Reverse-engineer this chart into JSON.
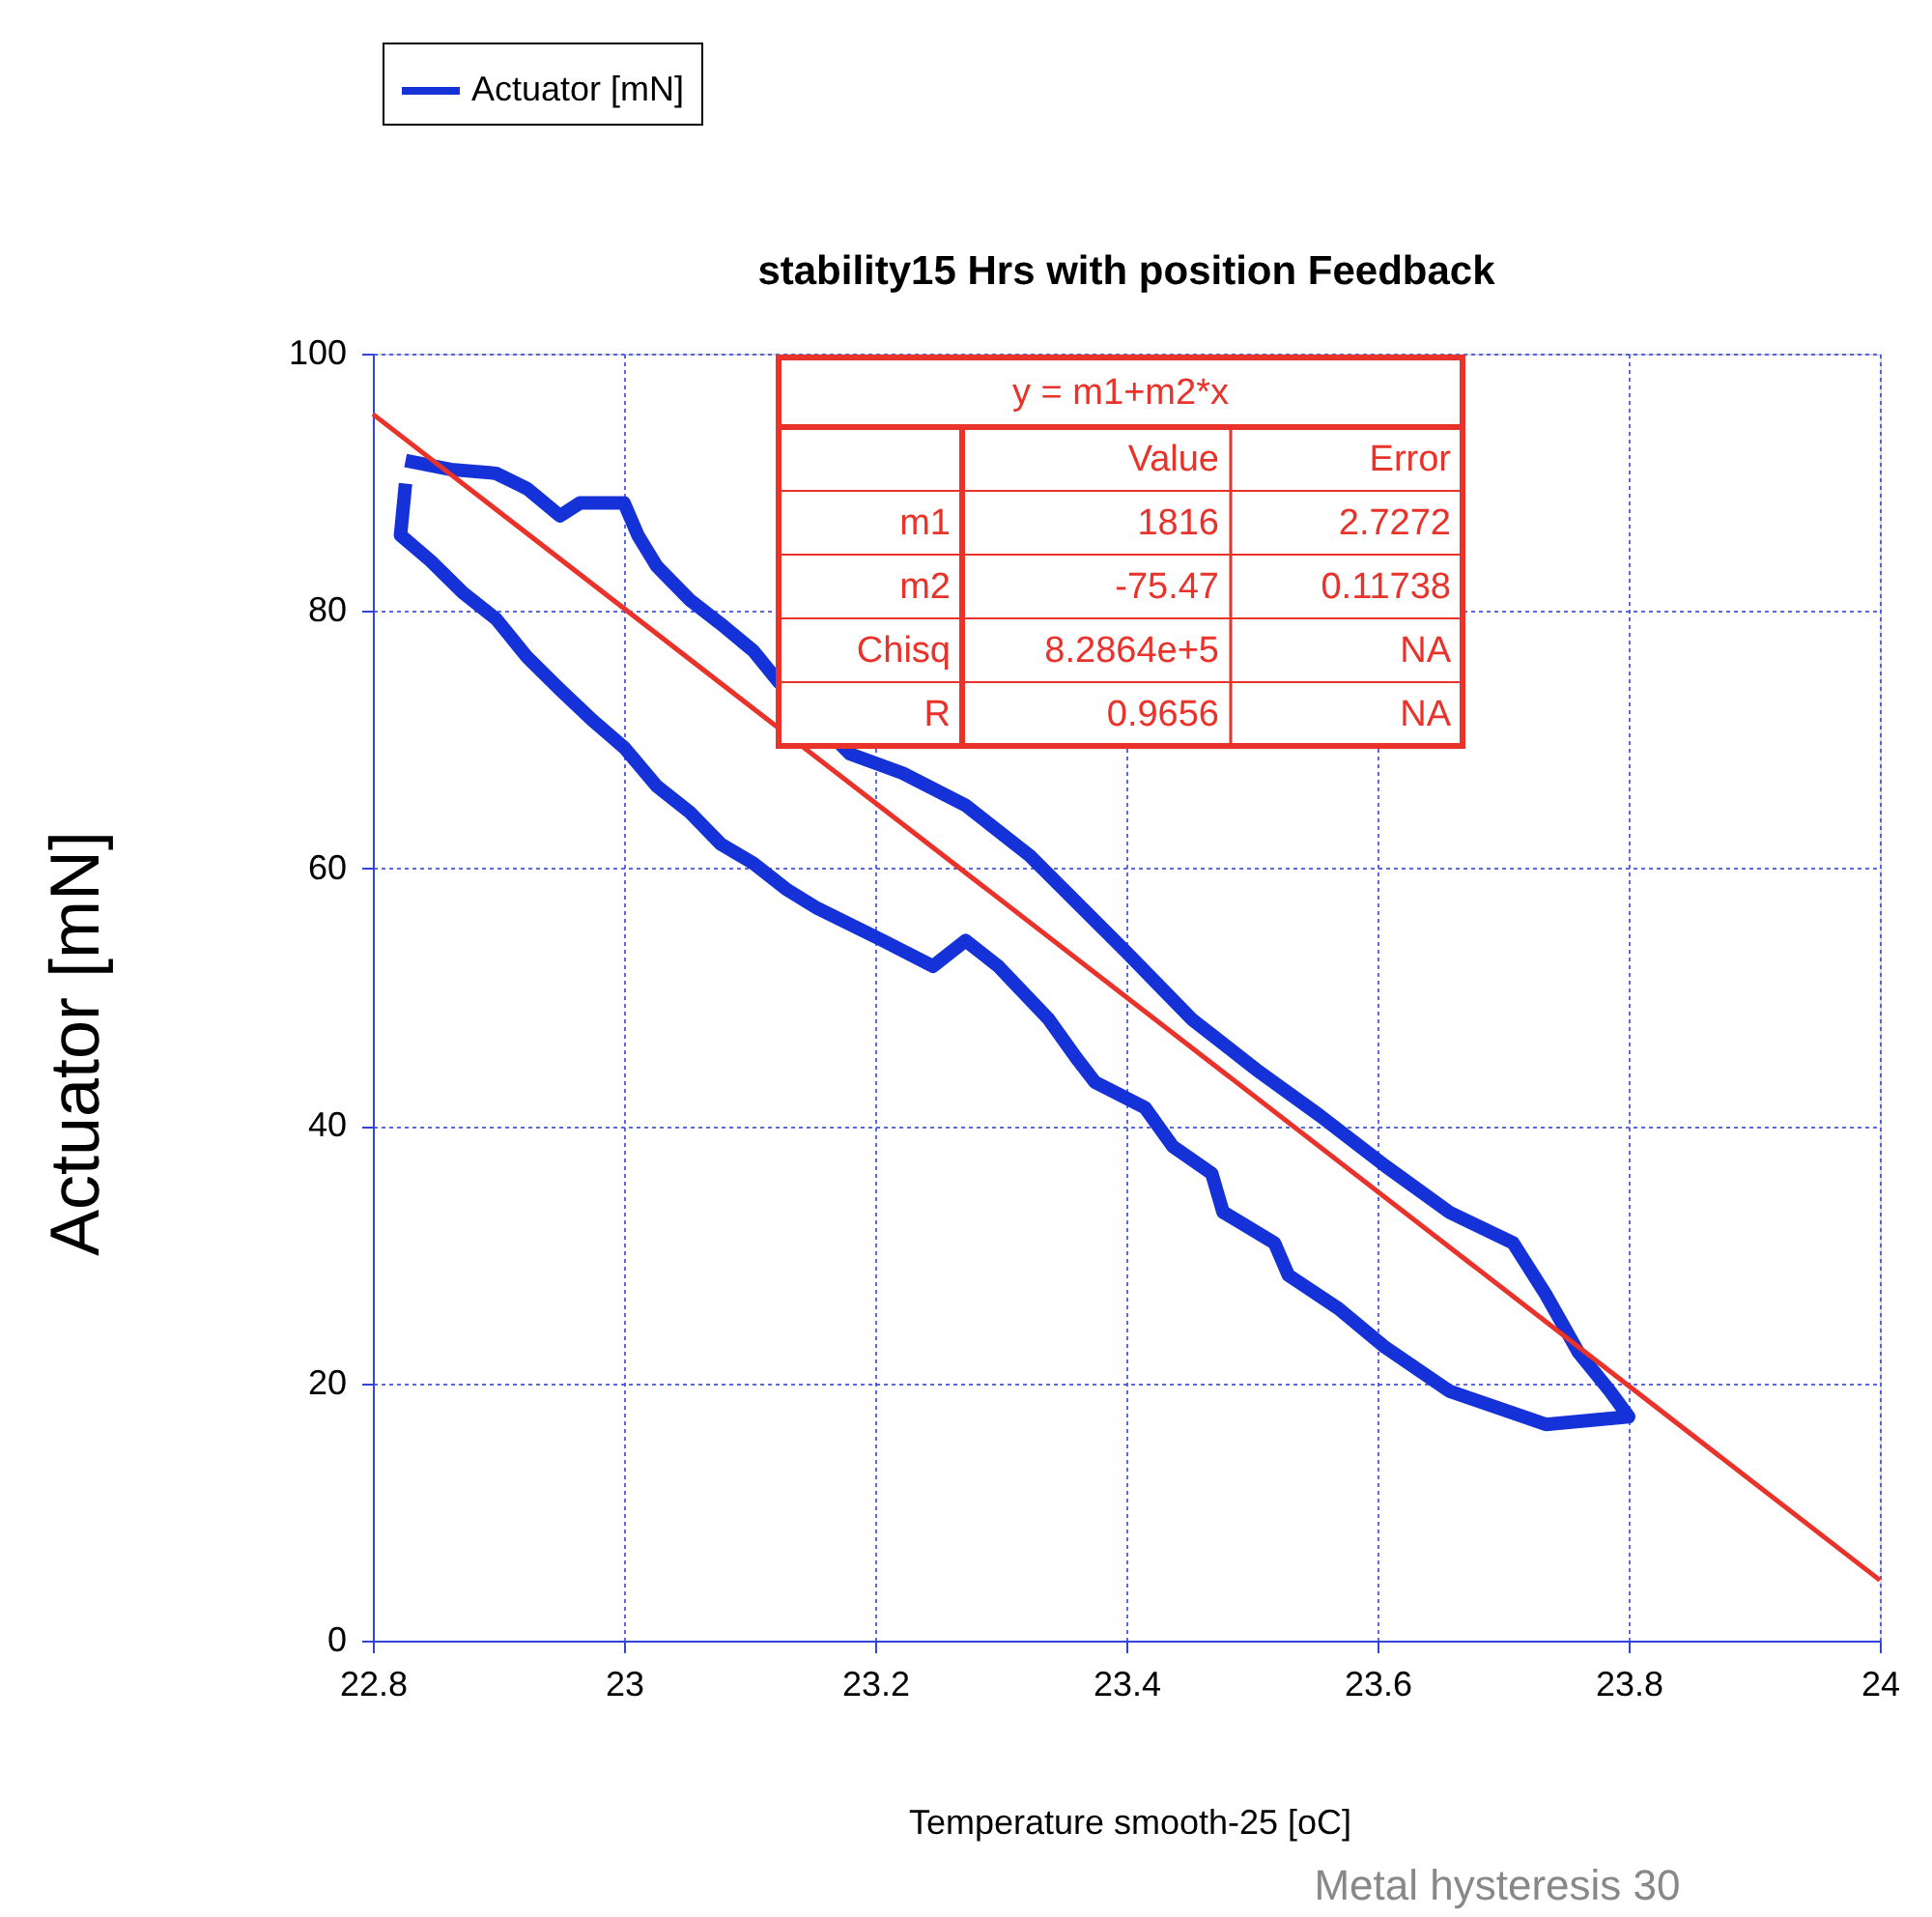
{
  "chart_data": {
    "type": "line",
    "title": "stability15 Hrs with position Feedback",
    "xlabel": "Temperature  smooth-25 [oC]",
    "ylabel": "Actuator [mN]",
    "xlim": [
      22.8,
      24
    ],
    "ylim": [
      0,
      100
    ],
    "xticks": [
      {
        "value": 22.8,
        "label": "22.8"
      },
      {
        "value": 23,
        "label": "23"
      },
      {
        "value": 23.2,
        "label": "23.2"
      },
      {
        "value": 23.4,
        "label": "23.4"
      },
      {
        "value": 23.6,
        "label": "23.6"
      },
      {
        "value": 23.8,
        "label": "23.8"
      },
      {
        "value": 24,
        "label": "24"
      }
    ],
    "yticks": [
      0,
      20,
      40,
      60,
      80,
      100
    ],
    "grid": true,
    "legend": "top left",
    "line_style": "solid",
    "marker": "none",
    "series": [
      {
        "name": "Actuator [mN]",
        "color": "#1432d8",
        "x": [
          22.826,
          22.862,
          22.898,
          22.923,
          22.949,
          22.965,
          23.0,
          23.011,
          23.026,
          23.052,
          23.077,
          23.103,
          23.123,
          23.18,
          23.222,
          23.272,
          23.323,
          23.4,
          23.452,
          23.503,
          23.554,
          23.606,
          23.657,
          23.708,
          23.734,
          23.76,
          23.785,
          23.8,
          23.734,
          23.657,
          23.606,
          23.569,
          23.529,
          23.518,
          23.477,
          23.468,
          23.437,
          23.415,
          23.375,
          23.36,
          23.338,
          23.298,
          23.272,
          23.246,
          23.206,
          23.154,
          23.129,
          23.103,
          23.077,
          23.052,
          23.026,
          23.0,
          22.975,
          22.949,
          22.923,
          22.898,
          22.872,
          22.846,
          22.822,
          22.826
        ],
        "values": [
          91.7,
          91.0,
          90.7,
          89.5,
          87.4,
          88.4,
          88.4,
          85.9,
          83.5,
          80.9,
          79.0,
          76.9,
          74.5,
          68.9,
          67.4,
          64.9,
          61.0,
          53.5,
          48.3,
          44.4,
          40.8,
          36.9,
          33.3,
          30.9,
          26.9,
          22.4,
          19.4,
          17.4,
          16.8,
          19.4,
          22.8,
          25.8,
          28.4,
          30.9,
          33.3,
          36.3,
          38.4,
          41.4,
          43.4,
          45.3,
          48.3,
          52.4,
          54.4,
          52.4,
          54.4,
          56.9,
          58.4,
          60.4,
          61.9,
          64.4,
          66.4,
          69.4,
          71.5,
          73.9,
          76.4,
          79.4,
          81.4,
          83.9,
          85.9,
          89.9
        ]
      },
      {
        "type": "line",
        "color": "#e8322a",
        "x": [
          22.8,
          24
        ],
        "values": [
          95.3,
          4.7
        ]
      }
    ],
    "annotations": [
      "y = m1+m2*x",
      "Value",
      "Error",
      "m1",
      "1816",
      "2.7272",
      "m2",
      "-75.47",
      "0.11738",
      "Chisq",
      "8.2864e+5",
      "NA",
      "R",
      "0.9656",
      "NA",
      "Metal hysteresis 30"
    ]
  }
}
